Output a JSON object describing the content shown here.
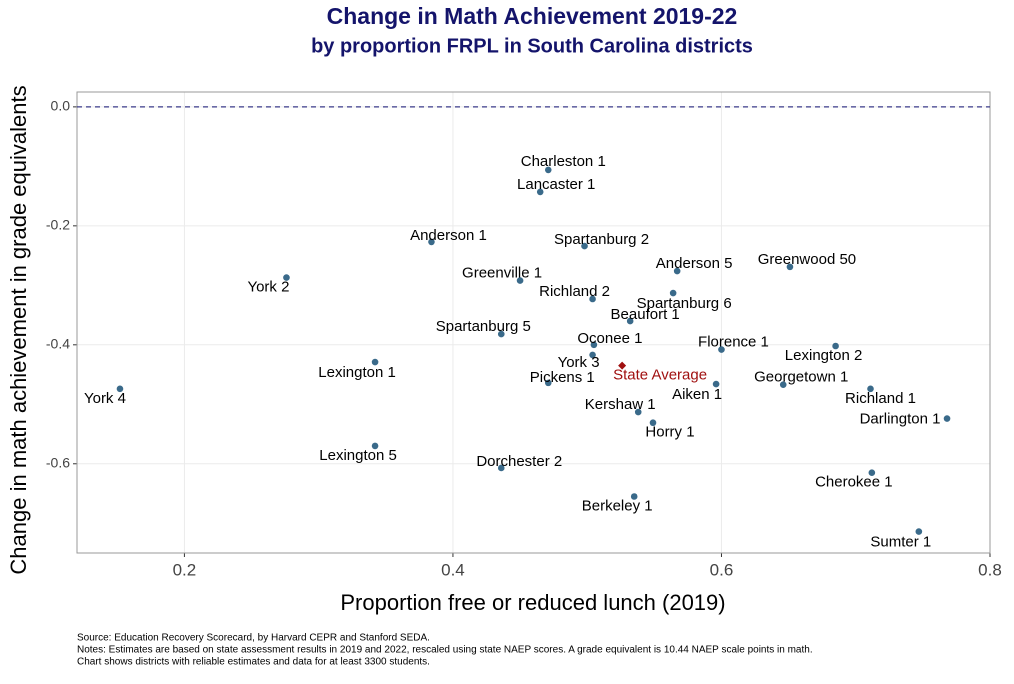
{
  "chart_data": {
    "type": "scatter",
    "title": "Change in Math Achievement 2019-22",
    "subtitle": "by proportion FRPL in South Carolina districts",
    "x_label": "Proportion free or reduced lunch (2019)",
    "y_label": "Change in math achievement in grade equivalents",
    "xlim": [
      0.12,
      0.8
    ],
    "ylim": [
      -0.75,
      0.025
    ],
    "xticks": [
      0.2,
      0.4,
      0.6,
      0.8
    ],
    "yticks": [
      {
        "value": 0,
        "label": "0.0"
      },
      -0.2,
      -0.4,
      -0.6
    ],
    "grid": true,
    "reference_line": 0,
    "series": [
      {
        "color": "#3a6a8a",
        "labels": [
          "Charleston 1",
          "Lancaster 1",
          "Anderson 1",
          "Spartanburg 2",
          "York 2",
          "Greenwood 50",
          "Anderson 5",
          "Greenville 1",
          "Richland 2",
          "Spartanburg 6",
          "Beaufort 1",
          "Spartanburg 5",
          "Oconee 1",
          "Florence 1",
          "Lexington 2",
          "York 3",
          "Lexington 1",
          "Pickens 1",
          "Aiken 1",
          "Georgetown 1",
          "York 4",
          "Richland 1",
          "Kershaw 1",
          "Darlington 1",
          "Horry 1",
          "Lexington 5",
          "Dorchester 2",
          "Cherokee 1",
          "Berkeley 1",
          "Sumter 1"
        ],
        "x": [
          0.471,
          0.465,
          0.384,
          0.498,
          0.276,
          0.651,
          0.567,
          0.45,
          0.504,
          0.564,
          0.532,
          0.436,
          0.505,
          0.6,
          0.685,
          0.504,
          0.342,
          0.471,
          0.596,
          0.646,
          0.152,
          0.711,
          0.538,
          0.768,
          0.549,
          0.342,
          0.436,
          0.712,
          0.535,
          0.747
        ],
        "values": [
          -0.106,
          -0.143,
          -0.227,
          -0.234,
          -0.287,
          -0.269,
          -0.276,
          -0.292,
          -0.323,
          -0.313,
          -0.36,
          -0.382,
          -0.4,
          -0.408,
          -0.402,
          -0.417,
          -0.429,
          -0.464,
          -0.466,
          -0.467,
          -0.474,
          -0.474,
          -0.513,
          -0.524,
          -0.531,
          -0.57,
          -0.607,
          -0.615,
          -0.655,
          -0.714
        ]
      },
      {
        "name": "State Average",
        "color": "#a01010",
        "x": [
          0.526
        ],
        "values": [
          -0.435
        ]
      }
    ],
    "notes": [
      "Source: Education Recovery Scorecard, by Harvard CEPR and Stanford SEDA.",
      "Notes: Estimates are based on state assessment results in 2019 and 2022, rescaled using state NAEP scores. A grade equivalent is 10.44 NAEP scale points in math.",
      "Chart shows districts with reliable estimates and data for at least 3300 students."
    ]
  }
}
